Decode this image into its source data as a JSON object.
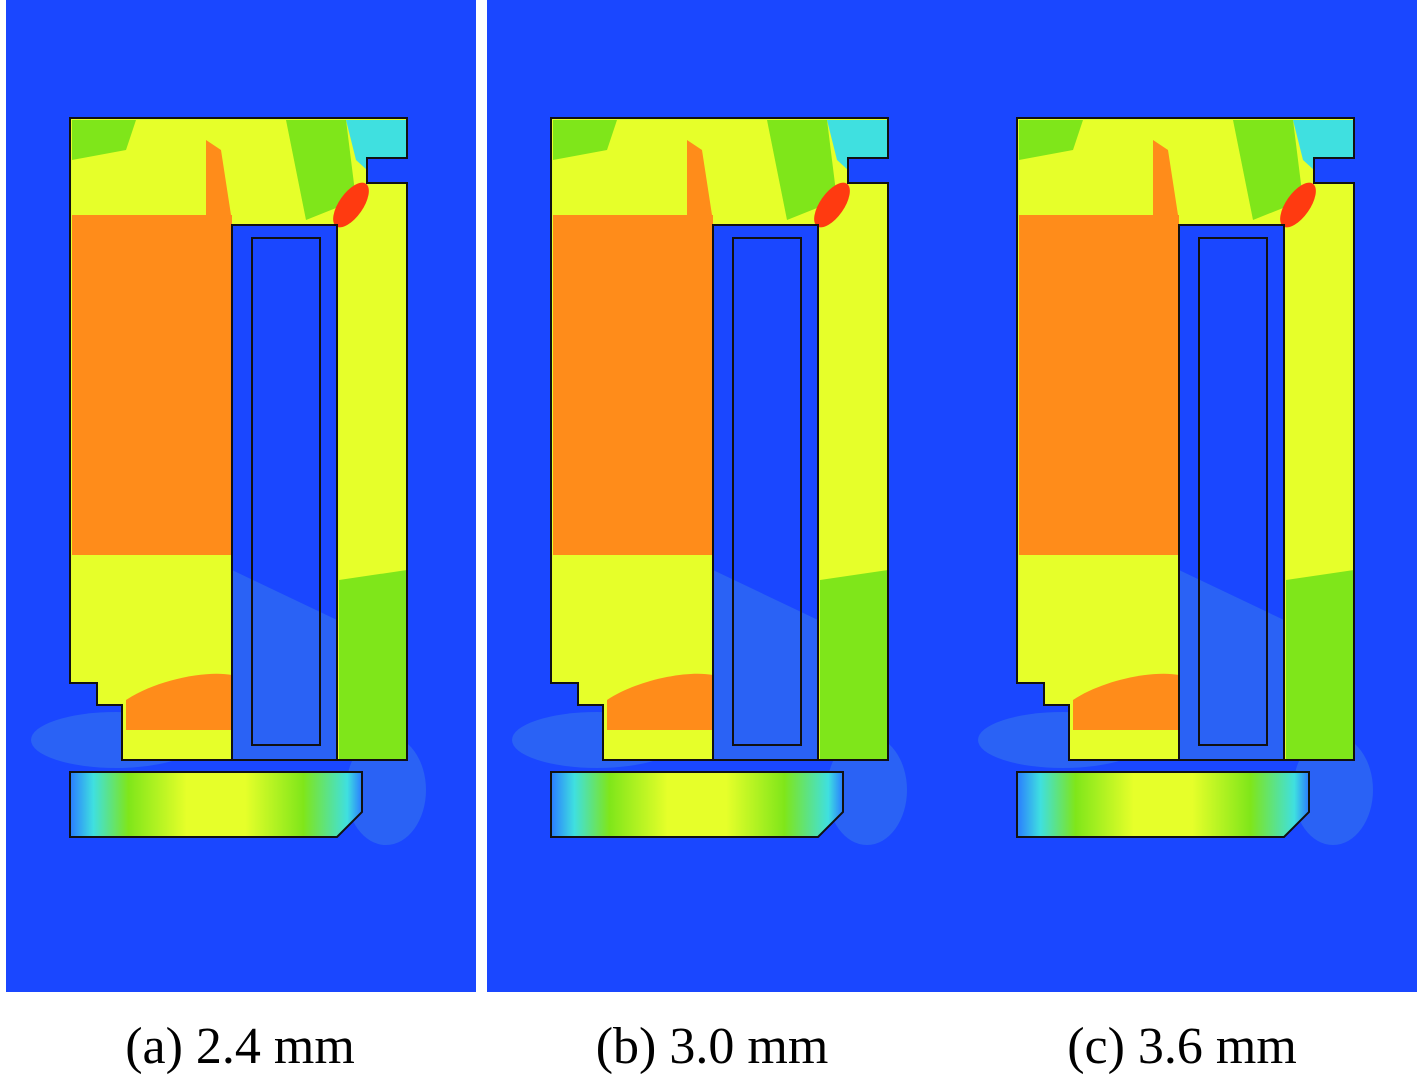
{
  "captions": [
    "(a) 2.4 mm",
    "(b) 3.0 mm",
    "(c) 3.6 mm"
  ]
}
